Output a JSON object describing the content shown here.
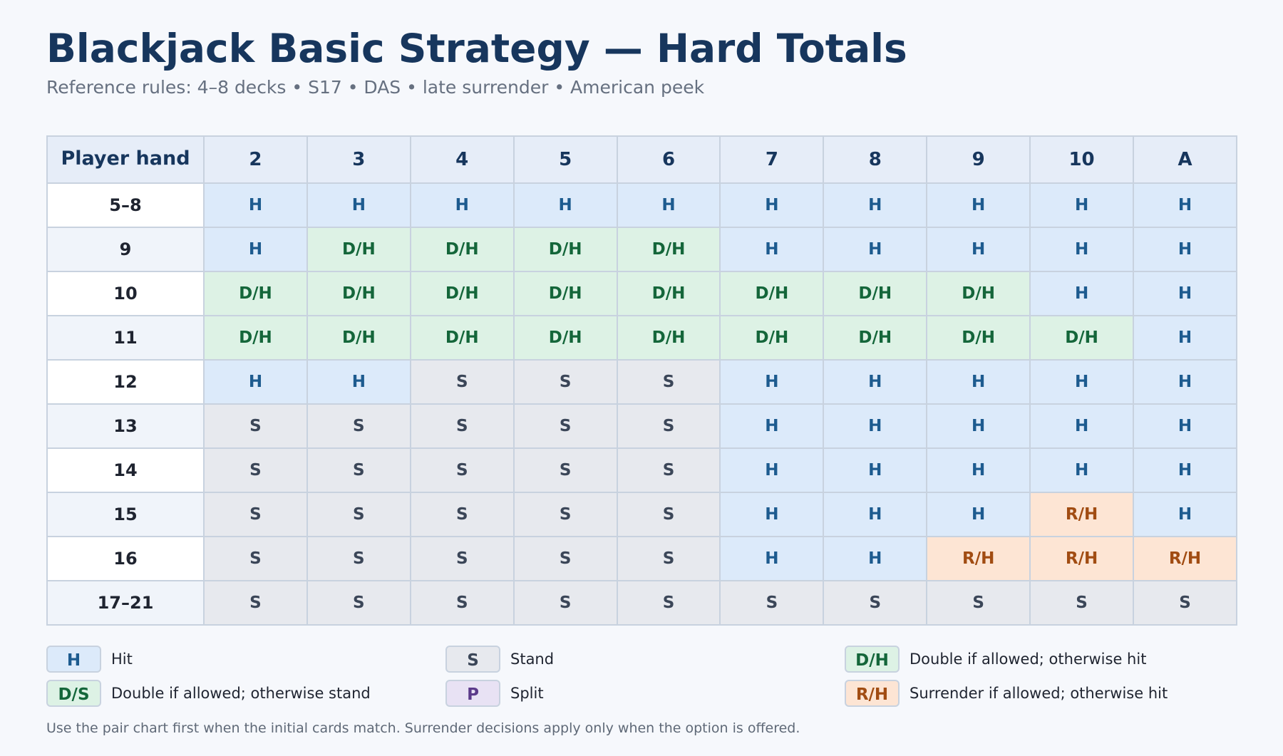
{
  "title": "Blackjack Basic Strategy — Hard Totals",
  "subtitle": "Reference rules: 4–8 decks • S17 • DAS • late surrender • American peek",
  "table": {
    "corner_label": "Player hand",
    "dealer_columns": [
      "2",
      "3",
      "4",
      "5",
      "6",
      "7",
      "8",
      "9",
      "10",
      "A"
    ],
    "rows": [
      {
        "hand": "5–8",
        "actions": [
          "H",
          "H",
          "H",
          "H",
          "H",
          "H",
          "H",
          "H",
          "H",
          "H"
        ]
      },
      {
        "hand": "9",
        "actions": [
          "H",
          "D/H",
          "D/H",
          "D/H",
          "D/H",
          "H",
          "H",
          "H",
          "H",
          "H"
        ]
      },
      {
        "hand": "10",
        "actions": [
          "D/H",
          "D/H",
          "D/H",
          "D/H",
          "D/H",
          "D/H",
          "D/H",
          "D/H",
          "H",
          "H"
        ]
      },
      {
        "hand": "11",
        "actions": [
          "D/H",
          "D/H",
          "D/H",
          "D/H",
          "D/H",
          "D/H",
          "D/H",
          "D/H",
          "D/H",
          "H"
        ]
      },
      {
        "hand": "12",
        "actions": [
          "H",
          "H",
          "S",
          "S",
          "S",
          "H",
          "H",
          "H",
          "H",
          "H"
        ]
      },
      {
        "hand": "13",
        "actions": [
          "S",
          "S",
          "S",
          "S",
          "S",
          "H",
          "H",
          "H",
          "H",
          "H"
        ]
      },
      {
        "hand": "14",
        "actions": [
          "S",
          "S",
          "S",
          "S",
          "S",
          "H",
          "H",
          "H",
          "H",
          "H"
        ]
      },
      {
        "hand": "15",
        "actions": [
          "S",
          "S",
          "S",
          "S",
          "S",
          "H",
          "H",
          "H",
          "R/H",
          "H"
        ]
      },
      {
        "hand": "16",
        "actions": [
          "S",
          "S",
          "S",
          "S",
          "S",
          "H",
          "H",
          "R/H",
          "R/H",
          "R/H"
        ]
      },
      {
        "hand": "17–21",
        "actions": [
          "S",
          "S",
          "S",
          "S",
          "S",
          "S",
          "S",
          "S",
          "S",
          "S"
        ]
      }
    ]
  },
  "legend": [
    {
      "code": "H",
      "label": "Hit"
    },
    {
      "code": "S",
      "label": "Stand"
    },
    {
      "code": "D/H",
      "label": "Double if allowed; otherwise hit"
    },
    {
      "code": "D/S",
      "label": "Double if allowed; otherwise stand"
    },
    {
      "code": "P",
      "label": "Split"
    },
    {
      "code": "R/H",
      "label": "Surrender if allowed; otherwise hit"
    }
  ],
  "footnote": "Use the pair chart first when the initial cards match. Surrender decisions apply only when the option is offered.",
  "colors": {
    "title": "#17365d",
    "hit_bg": "#dceafa",
    "hit_text": "#1d5b8f",
    "stand_bg": "#e7e9ee",
    "stand_text": "#3b4658",
    "double_bg": "#ddf2e5",
    "double_text": "#14663a",
    "surrender_bg": "#fde5d4",
    "surrender_text": "#a14c12",
    "split_bg": "#e8e2f4",
    "split_text": "#5b3a8a"
  }
}
